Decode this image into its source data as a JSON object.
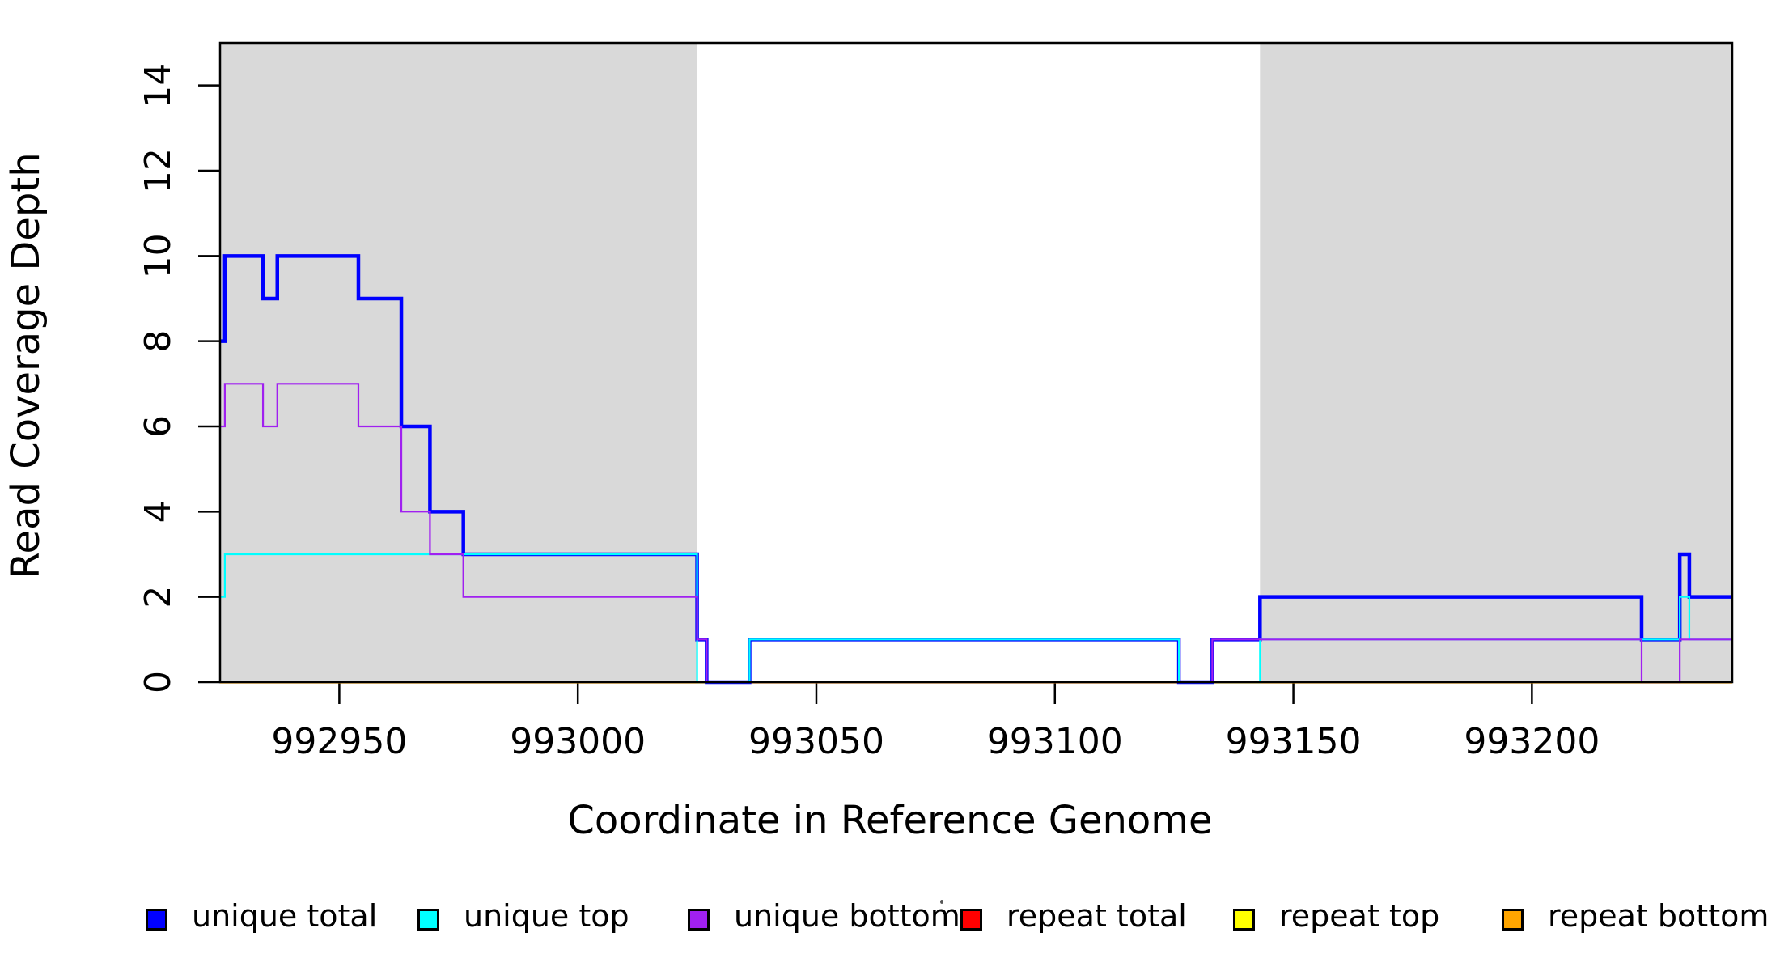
{
  "chart_data": {
    "type": "line",
    "subtype": "step-coverage",
    "title": "",
    "xlabel": "Coordinate in Reference Genome",
    "ylabel": "Read Coverage Depth",
    "xlim": [
      992925,
      993242
    ],
    "ylim": [
      0,
      15
    ],
    "grid": false,
    "x_ticks": [
      992950,
      993000,
      993050,
      993100,
      993150,
      993200
    ],
    "x_tick_labels": [
      "992950",
      "993000",
      "993050",
      "993100",
      "993150",
      "993200"
    ],
    "y_ticks": [
      0,
      2,
      4,
      6,
      8,
      10,
      12,
      14
    ],
    "y_tick_labels": [
      "0",
      "2",
      "4",
      "6",
      "8",
      "10",
      "12",
      "14"
    ],
    "shaded_regions": [
      {
        "x0": 992925,
        "x1": 993025,
        "color": "#D9D9D9"
      },
      {
        "x0": 993143,
        "x1": 993242,
        "color": "#D9D9D9"
      }
    ],
    "series": [
      {
        "name": "unique total",
        "color": "#0000FF",
        "line_width": 4.5,
        "z": 4,
        "steps": [
          [
            992925,
            8
          ],
          [
            992926,
            10
          ],
          [
            992934,
            9
          ],
          [
            992937,
            10
          ],
          [
            992954,
            9
          ],
          [
            992963,
            6
          ],
          [
            992969,
            4
          ],
          [
            992976,
            3
          ],
          [
            993025,
            1
          ],
          [
            993027,
            0
          ],
          [
            993036,
            1
          ],
          [
            993126,
            0
          ],
          [
            993133,
            1
          ],
          [
            993143,
            2
          ],
          [
            993223,
            1
          ],
          [
            993231,
            3
          ],
          [
            993233,
            2
          ]
        ]
      },
      {
        "name": "unique top",
        "color": "#00FFFF",
        "line_width": 2.2,
        "z": 5,
        "steps": [
          [
            992925,
            2
          ],
          [
            992926,
            3
          ],
          [
            993025,
            0
          ],
          [
            993036,
            1
          ],
          [
            993126,
            0
          ],
          [
            993143,
            1
          ],
          [
            993231,
            2
          ],
          [
            993233,
            1
          ]
        ]
      },
      {
        "name": "unique bottom",
        "color": "#A020F0",
        "line_width": 2.2,
        "z": 6,
        "steps": [
          [
            992925,
            6
          ],
          [
            992926,
            7
          ],
          [
            992934,
            6
          ],
          [
            992937,
            7
          ],
          [
            992954,
            6
          ],
          [
            992963,
            4
          ],
          [
            992969,
            3
          ],
          [
            992976,
            2
          ],
          [
            993025,
            1
          ],
          [
            993027,
            0
          ],
          [
            993133,
            1
          ],
          [
            993223,
            0
          ],
          [
            993231,
            1
          ]
        ]
      },
      {
        "name": "repeat total",
        "color": "#FF0000",
        "line_width": 2.2,
        "z": 1,
        "steps": [
          [
            992925,
            0
          ]
        ]
      },
      {
        "name": "repeat top",
        "color": "#FFFF00",
        "line_width": 2.2,
        "z": 2,
        "steps": [
          [
            992925,
            0
          ]
        ]
      },
      {
        "name": "repeat bottom",
        "color": "#FFA500",
        "line_width": 3.2,
        "z": 3,
        "steps": [
          [
            992925,
            0
          ]
        ]
      }
    ]
  },
  "legend": {
    "items": [
      {
        "label": "unique total",
        "color": "#0000FF"
      },
      {
        "label": "unique top",
        "color": "#00FFFF"
      },
      {
        "label": "unique bottom",
        "color": "#A020F0"
      },
      {
        "label": "repeat total",
        "color": "#FF0000"
      },
      {
        "label": "repeat top",
        "color": "#FFFF00"
      },
      {
        "label": "repeat bottom",
        "color": "#FFA500"
      }
    ]
  }
}
